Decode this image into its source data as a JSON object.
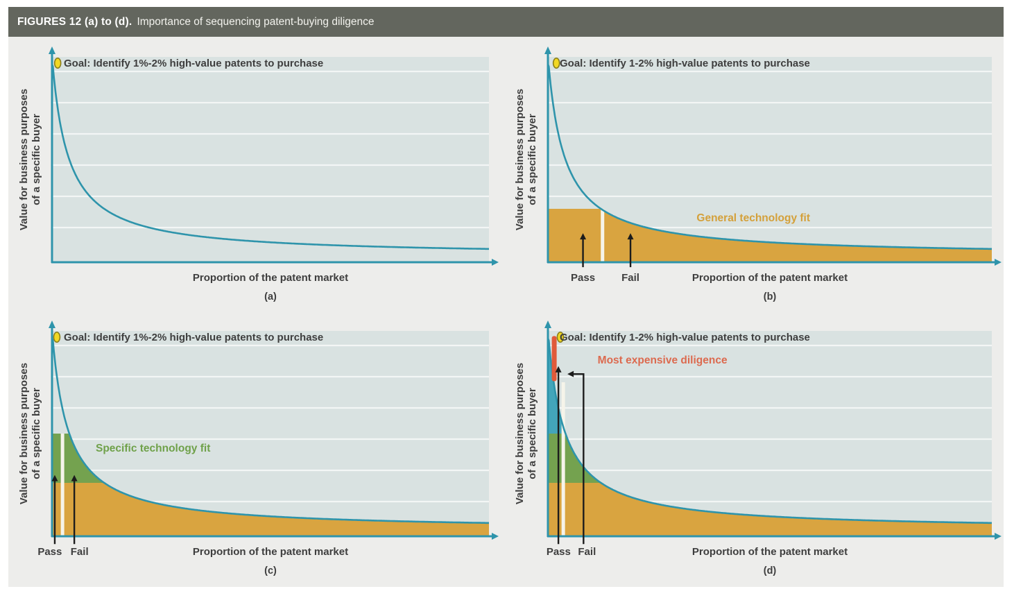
{
  "header": {
    "figure_label": "FIGURES 12 (a) to (d).",
    "figure_title": "Importance of sequencing patent-buying diligence"
  },
  "shared": {
    "y_axis_label_line1": "Value for business purposes",
    "y_axis_label_line2": "of a specific buyer",
    "x_axis_label": "Proportion of the patent market",
    "pass_label": "Pass",
    "fail_label": "Fail"
  },
  "colors": {
    "header_bar": "#63665E",
    "header_text": "#FFFFFF",
    "panel_bg": "#EDEDEB",
    "plot_bg": "#D9E2E1",
    "gridline": "#F3F6F5",
    "curve_teal": "#2E94AB",
    "fill_orange": "#D9A440",
    "fill_green": "#74A24F",
    "fill_teal": "#43A5BA",
    "label_orange": "#D4A03A",
    "label_green": "#6FA14A",
    "red_accent": "#DC6A4F",
    "red_strip": "#E05A3A",
    "divider_white": "#F6F4EA",
    "goal_dot_fill": "#F2D823",
    "goal_dot_stroke": "#8B7F1C",
    "text_dark": "#3E3E3E",
    "arrow_black": "#1C1C1C"
  },
  "chart_data": [
    {
      "type": "line",
      "panel_label": "(a)",
      "goal_text": "Goal: Identify 1%-2% high-value patents to purchase",
      "xlabel": "Proportion of the patent market",
      "ylabel": "Value for business purposes of a specific buyer",
      "axes_numeric": false,
      "note": "Qualitative long-tail decay curve: a tiny fraction of patents has very high value",
      "curve": {
        "model": "value = min(peak, k/(x+a) + b), x in [0,1]",
        "k": 0.036,
        "a": 0.037,
        "b": 0.03,
        "peak": 0.965
      },
      "goal_dot_fx": 0.013,
      "regions": []
    },
    {
      "type": "area",
      "panel_label": "(b)",
      "goal_text": "Goal: Identify 1-2% high-value patents to purchase",
      "xlabel": "Proportion of the patent market",
      "ylabel": "Value for business purposes of a specific buyer",
      "axes_numeric": false,
      "note": "First diligence screen: general technology fit; wide pass band near the axis",
      "curve": {
        "model": "value = min(peak, k/(x+a) + b), x in [0,1]",
        "k": 0.036,
        "a": 0.037,
        "b": 0.03,
        "peak": 0.965
      },
      "goal_dot_fx": 0.019,
      "regions": [
        {
          "name": "General technology fit",
          "color_key": "fill_orange",
          "top": 0.26,
          "base": 0.0
        }
      ],
      "region_label": {
        "text": "General technology fit",
        "color_key": "label_orange",
        "fx": 0.335,
        "fy_top": 0.757
      },
      "divider": {
        "fx": 0.123,
        "top_frac": 0.26
      },
      "pass": {
        "fx": 0.079,
        "label_fx": 0.079,
        "from_frac": -0.024,
        "tip_frac": 0.138
      },
      "fail": {
        "fx": 0.186,
        "label_fx": 0.186,
        "from_frac": -0.024,
        "tip_frac": 0.138
      }
    },
    {
      "type": "area",
      "panel_label": "(c)",
      "goal_text": "Goal: Identify 1%-2% high-value patents to purchase",
      "xlabel": "Proportion of the patent market",
      "ylabel": "Value for business purposes of a specific buyer",
      "axes_numeric": false,
      "note": "Second diligence screen: specific technology fit; narrower pass band",
      "curve": {
        "model": "value = min(peak, k/(x+a) + b), x in [0,1]",
        "k": 0.036,
        "a": 0.037,
        "b": 0.03,
        "peak": 0.965
      },
      "goal_dot_fx": 0.011,
      "regions": [
        {
          "name": "General technology fit",
          "color_key": "fill_orange",
          "top": 0.26,
          "base": 0.0
        },
        {
          "name": "Specific technology fit",
          "color_key": "fill_green",
          "top": 0.5,
          "base": 0.26
        }
      ],
      "region_label": {
        "text": "Specific technology fit",
        "color_key": "label_green",
        "fx": 0.1,
        "fy_top": 0.545
      },
      "divider": {
        "fx": 0.024,
        "top_frac": 0.5
      },
      "pass": {
        "fx": 0.0063,
        "label_fx": -0.005,
        "from_frac": -0.038,
        "tip_frac": 0.295
      },
      "fail": {
        "fx": 0.051,
        "label_fx": 0.063,
        "from_frac": -0.038,
        "tip_frac": 0.295
      }
    },
    {
      "type": "area",
      "panel_label": "(d)",
      "goal_text": "Goal: Identify 1-2% high-value patents to purchase",
      "xlabel": "Proportion of the patent market",
      "ylabel": "Value for business purposes of a specific buyer",
      "axes_numeric": false,
      "note": "Final, most expensive diligence applied only to the narrow top-value spike",
      "curve": {
        "model": "value = min(peak, k/(x+a) + b), x in [0,1]",
        "k": 0.036,
        "a": 0.037,
        "b": 0.03,
        "peak": 0.965
      },
      "goal_dot_fx": 0.028,
      "regions": [
        {
          "name": "General technology fit",
          "color_key": "fill_orange",
          "top": 0.26,
          "base": 0.0
        },
        {
          "name": "Specific technology fit",
          "color_key": "fill_green",
          "top": 0.5,
          "base": 0.26
        },
        {
          "name": "Top-value spike under curve",
          "color_key": "fill_teal",
          "top": 0.965,
          "base": 0.5
        }
      ],
      "region_label": {
        "text": "Most expensive diligence",
        "color_key": "red_accent",
        "fx": 0.112,
        "fy_top": 0.115
      },
      "divider": {
        "fx": 0.0346,
        "top_frac": 0.75
      },
      "red_strip": {
        "fx": 0.0142,
        "top_frac": 0.975,
        "bottom_frac": 0.755
      },
      "pass": {
        "fx": 0.0236,
        "label_fx": 0.024,
        "from_frac": -0.038,
        "tip_frac": 0.825
      },
      "fail": {
        "fx": 0.0802,
        "label_fx": 0.088,
        "from_frac": -0.038,
        "line_top_frac": 0.79,
        "elbow_to_fx": 0.047
      }
    }
  ]
}
